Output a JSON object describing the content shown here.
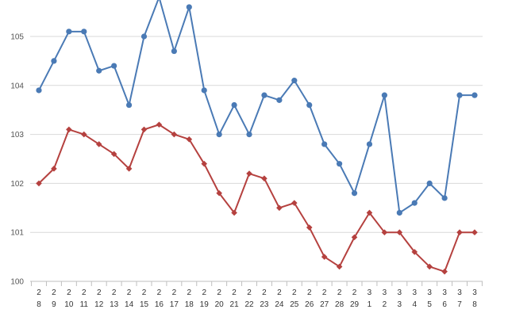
{
  "chart_data": {
    "type": "line",
    "x": [
      {
        "top": "2",
        "bottom": "8"
      },
      {
        "top": "2",
        "bottom": "9"
      },
      {
        "top": "2",
        "bottom": "10"
      },
      {
        "top": "2",
        "bottom": "11"
      },
      {
        "top": "2",
        "bottom": "12"
      },
      {
        "top": "2",
        "bottom": "13"
      },
      {
        "top": "2",
        "bottom": "14"
      },
      {
        "top": "2",
        "bottom": "15"
      },
      {
        "top": "2",
        "bottom": "16"
      },
      {
        "top": "2",
        "bottom": "17"
      },
      {
        "top": "2",
        "bottom": "18"
      },
      {
        "top": "2",
        "bottom": "19"
      },
      {
        "top": "2",
        "bottom": "20"
      },
      {
        "top": "2",
        "bottom": "21"
      },
      {
        "top": "2",
        "bottom": "22"
      },
      {
        "top": "2",
        "bottom": "23"
      },
      {
        "top": "2",
        "bottom": "24"
      },
      {
        "top": "2",
        "bottom": "25"
      },
      {
        "top": "2",
        "bottom": "26"
      },
      {
        "top": "2",
        "bottom": "27"
      },
      {
        "top": "2",
        "bottom": "28"
      },
      {
        "top": "2",
        "bottom": "29"
      },
      {
        "top": "3",
        "bottom": "1"
      },
      {
        "top": "3",
        "bottom": "2"
      },
      {
        "top": "3",
        "bottom": "3"
      },
      {
        "top": "3",
        "bottom": "4"
      },
      {
        "top": "3",
        "bottom": "5"
      },
      {
        "top": "3",
        "bottom": "6"
      },
      {
        "top": "3",
        "bottom": "7"
      },
      {
        "top": "3",
        "bottom": "8"
      }
    ],
    "series": [
      {
        "color": "#4a7ab5",
        "marker": "circle",
        "values": [
          103.9,
          104.5,
          105.1,
          105.1,
          104.3,
          104.4,
          103.6,
          105.0,
          105.8,
          104.7,
          105.6,
          103.9,
          103.0,
          103.6,
          103.0,
          103.8,
          103.7,
          104.1,
          103.6,
          102.8,
          102.4,
          101.8,
          102.8,
          103.8,
          101.4,
          101.6,
          102.0,
          101.7,
          103.8,
          103.8
        ]
      },
      {
        "color": "#b5413f",
        "marker": "diamond",
        "values": [
          102.0,
          102.3,
          103.1,
          103.0,
          102.8,
          102.6,
          102.3,
          103.1,
          103.2,
          103.0,
          102.9,
          102.4,
          101.8,
          101.4,
          102.2,
          102.1,
          101.5,
          101.6,
          101.1,
          100.5,
          100.3,
          100.9,
          101.4,
          101.0,
          101.0,
          100.6,
          100.3,
          100.2,
          101.0,
          101.0
        ]
      }
    ],
    "yticks": [
      "100",
      "101",
      "102",
      "103",
      "104",
      "105"
    ],
    "ylim": [
      100,
      105.9
    ],
    "grid": true,
    "gridColor": "#d9d9d9",
    "axisColor": "#bfbfbf"
  }
}
